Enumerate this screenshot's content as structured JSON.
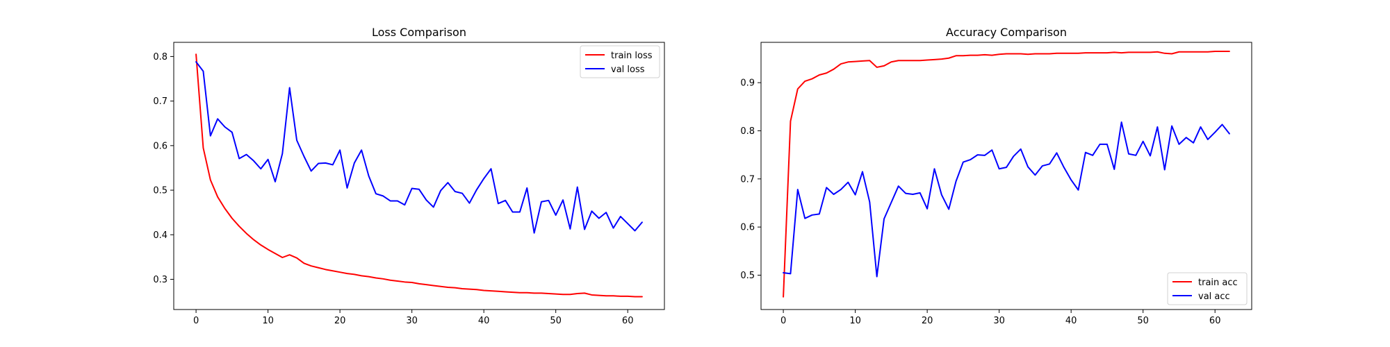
{
  "chart_data": [
    {
      "type": "line",
      "title": "Loss Comparison",
      "xlabel": "",
      "ylabel": "",
      "xlim": [
        -3.1,
        65.1
      ],
      "ylim": [
        0.2322,
        0.8318
      ],
      "xticks": [
        0,
        10,
        20,
        30,
        40,
        50,
        60
      ],
      "yticks": [
        0.3,
        0.4,
        0.5,
        0.6,
        0.7,
        0.8
      ],
      "ytick_format": 1,
      "legend_loc": "upper right",
      "grid": false,
      "series": [
        {
          "name": "train loss",
          "color": "#ff0000",
          "values": [
            0.805,
            0.595,
            0.523,
            0.485,
            0.459,
            0.437,
            0.419,
            0.403,
            0.389,
            0.377,
            0.367,
            0.358,
            0.349,
            0.355,
            0.348,
            0.336,
            0.33,
            0.326,
            0.322,
            0.319,
            0.316,
            0.313,
            0.311,
            0.308,
            0.306,
            0.303,
            0.301,
            0.298,
            0.296,
            0.294,
            0.293,
            0.29,
            0.288,
            0.286,
            0.284,
            0.282,
            0.281,
            0.279,
            0.278,
            0.277,
            0.275,
            0.274,
            0.273,
            0.272,
            0.271,
            0.27,
            0.27,
            0.269,
            0.269,
            0.268,
            0.267,
            0.266,
            0.266,
            0.268,
            0.269,
            0.265,
            0.264,
            0.263,
            0.263,
            0.262,
            0.262,
            0.261,
            0.261
          ]
        },
        {
          "name": "val loss",
          "color": "#0000ff",
          "values": [
            0.788,
            0.767,
            0.622,
            0.66,
            0.642,
            0.63,
            0.571,
            0.58,
            0.566,
            0.548,
            0.569,
            0.519,
            0.582,
            0.73,
            0.612,
            0.576,
            0.543,
            0.56,
            0.561,
            0.557,
            0.59,
            0.505,
            0.561,
            0.59,
            0.532,
            0.492,
            0.487,
            0.476,
            0.476,
            0.467,
            0.504,
            0.502,
            0.478,
            0.462,
            0.499,
            0.517,
            0.497,
            0.493,
            0.471,
            0.501,
            0.526,
            0.548,
            0.47,
            0.477,
            0.451,
            0.451,
            0.505,
            0.404,
            0.474,
            0.477,
            0.444,
            0.478,
            0.413,
            0.507,
            0.412,
            0.453,
            0.437,
            0.45,
            0.415,
            0.441,
            0.425,
            0.409,
            0.428
          ]
        }
      ]
    },
    {
      "type": "line",
      "title": "Accuracy Comparison",
      "xlabel": "",
      "ylabel": "",
      "xlim": [
        -3.1,
        65.1
      ],
      "ylim": [
        0.4286,
        0.9838
      ],
      "xticks": [
        0,
        10,
        20,
        30,
        40,
        50,
        60
      ],
      "yticks": [
        0.5,
        0.6,
        0.7,
        0.8,
        0.9
      ],
      "ytick_format": 1,
      "legend_loc": "lower right",
      "grid": false,
      "series": [
        {
          "name": "train acc",
          "color": "#ff0000",
          "values": [
            0.455,
            0.82,
            0.887,
            0.903,
            0.908,
            0.916,
            0.92,
            0.928,
            0.939,
            0.943,
            0.944,
            0.945,
            0.946,
            0.932,
            0.935,
            0.943,
            0.946,
            0.946,
            0.946,
            0.946,
            0.947,
            0.948,
            0.949,
            0.951,
            0.956,
            0.956,
            0.957,
            0.957,
            0.958,
            0.957,
            0.959,
            0.96,
            0.96,
            0.96,
            0.959,
            0.96,
            0.96,
            0.96,
            0.961,
            0.961,
            0.961,
            0.961,
            0.962,
            0.962,
            0.962,
            0.962,
            0.963,
            0.962,
            0.963,
            0.963,
            0.963,
            0.963,
            0.964,
            0.961,
            0.96,
            0.964,
            0.964,
            0.964,
            0.964,
            0.964,
            0.965,
            0.965,
            0.965
          ]
        },
        {
          "name": "val acc",
          "color": "#0000ff",
          "values": [
            0.505,
            0.503,
            0.678,
            0.618,
            0.625,
            0.627,
            0.682,
            0.668,
            0.678,
            0.693,
            0.667,
            0.715,
            0.652,
            0.497,
            0.617,
            0.651,
            0.685,
            0.67,
            0.668,
            0.671,
            0.638,
            0.721,
            0.667,
            0.637,
            0.695,
            0.735,
            0.74,
            0.75,
            0.749,
            0.76,
            0.721,
            0.724,
            0.747,
            0.762,
            0.725,
            0.708,
            0.727,
            0.731,
            0.754,
            0.724,
            0.698,
            0.677,
            0.755,
            0.749,
            0.772,
            0.772,
            0.72,
            0.818,
            0.752,
            0.749,
            0.778,
            0.748,
            0.808,
            0.719,
            0.81,
            0.772,
            0.786,
            0.775,
            0.808,
            0.782,
            0.797,
            0.813,
            0.794
          ]
        }
      ]
    }
  ]
}
